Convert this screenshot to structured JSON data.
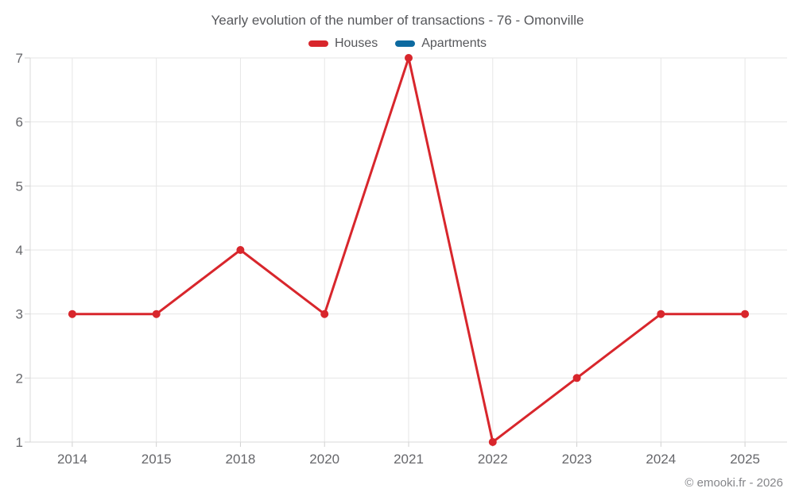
{
  "title": "Yearly evolution of the number of transactions - 76 - Omonville",
  "footer": "© emooki.fr - 2026",
  "legend": {
    "items": [
      {
        "label": "Houses",
        "color": "#d8262c"
      },
      {
        "label": "Apartments",
        "color": "#0d6aa0"
      }
    ]
  },
  "colors": {
    "houses": "#d8262c",
    "apartments": "#0d6aa0",
    "grid": "#e6e6e6",
    "axis": "#d9d9d9",
    "tick": "#d0d0d0",
    "tick_label": "#66676b"
  },
  "chart_data": {
    "type": "line",
    "title": "Yearly evolution of the number of transactions - 76 - Omonville",
    "categories": [
      "2014",
      "2015",
      "2018",
      "2020",
      "2021",
      "2022",
      "2023",
      "2024",
      "2025"
    ],
    "series": [
      {
        "name": "Houses",
        "color": "#d8262c",
        "values": [
          3,
          3,
          4,
          3,
          7,
          1,
          2,
          3,
          3
        ]
      },
      {
        "name": "Apartments",
        "color": "#0d6aa0",
        "values": []
      }
    ],
    "xlabel": "",
    "ylabel": "",
    "ylim": [
      1,
      7
    ],
    "yticks": [
      1,
      2,
      3,
      4,
      5,
      6,
      7
    ],
    "grid": true,
    "legend_position": "top"
  }
}
